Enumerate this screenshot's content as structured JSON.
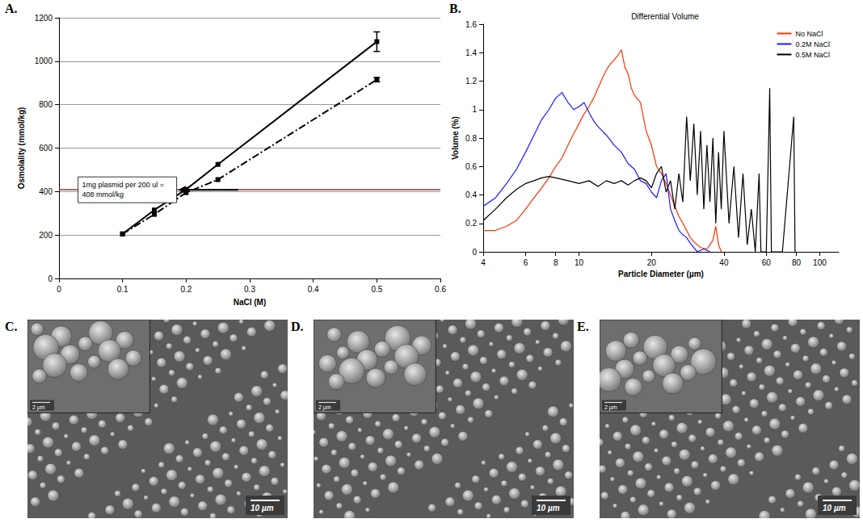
{
  "chart_data": [
    {
      "panel": "A.",
      "type": "line",
      "x_label": "NaCl (M)",
      "y_label": "Osmolality (mmol/kg)",
      "xlim": [
        0,
        0.6
      ],
      "xticks": [
        0,
        0.1,
        0.2,
        0.3,
        0.4,
        0.5,
        0.6
      ],
      "ylim": [
        0,
        1200
      ],
      "yticks": [
        0,
        200,
        400,
        600,
        800,
        1000,
        1200
      ],
      "grid": true,
      "series": [
        {
          "color": "#000000",
          "line_style": "solid",
          "marker": "square",
          "x": [
            0.1,
            0.15,
            0.2,
            0.25,
            0.5
          ],
          "values": [
            205,
            315,
            410,
            525,
            1090
          ],
          "errors": [
            null,
            null,
            null,
            null,
            45
          ]
        },
        {
          "color": "#000000",
          "line_style": "dashdot",
          "marker": "square",
          "x": [
            0.1,
            0.15,
            0.2,
            0.25,
            0.5
          ],
          "values": [
            205,
            295,
            395,
            455,
            915
          ],
          "errors": [
            null,
            null,
            null,
            null,
            10
          ]
        }
      ],
      "annotations": [
        {
          "text": "1mg plasmid per 200 ul = 408 mmol/kg",
          "y": 408,
          "color": "#8b3a2a"
        }
      ]
    },
    {
      "panel": "B.",
      "type": "line",
      "title": "Differential Volume",
      "x_label": "Particle Diameter (µm)",
      "y_label": "Volume (%)",
      "log": "x",
      "xlim": [
        4,
        120
      ],
      "xticks": [
        4,
        6,
        8,
        10,
        20,
        40,
        60,
        80,
        100
      ],
      "ylim": [
        0,
        1.6
      ],
      "yticks": [
        0,
        0.2,
        0.4,
        0.6,
        0.8,
        1,
        1.2,
        1.4,
        1.6
      ],
      "grid": false,
      "legend": "top-right",
      "series": [
        {
          "name": "No NaCl",
          "color": "#ff3300",
          "x": [
            4,
            4.5,
            5,
            5.5,
            6,
            6.5,
            7,
            7.5,
            8,
            8.5,
            9,
            9.5,
            10,
            10.5,
            11,
            11.5,
            12,
            12.5,
            13,
            13.5,
            14,
            14.5,
            15,
            15.5,
            16,
            16.5,
            17,
            18,
            19,
            20,
            21,
            22,
            23,
            24,
            25,
            26,
            27,
            28,
            29,
            30,
            32,
            34,
            36,
            37,
            38,
            39
          ],
          "values": [
            0.15,
            0.15,
            0.18,
            0.22,
            0.3,
            0.38,
            0.45,
            0.52,
            0.6,
            0.66,
            0.75,
            0.83,
            0.9,
            0.97,
            1.02,
            1.08,
            1.15,
            1.22,
            1.28,
            1.32,
            1.35,
            1.38,
            1.42,
            1.3,
            1.25,
            1.15,
            1.1,
            1.05,
            0.85,
            0.75,
            0.6,
            0.55,
            0.48,
            0.4,
            0.32,
            0.25,
            0.2,
            0.15,
            0.1,
            0.07,
            0.03,
            0.02,
            0.08,
            0.18,
            0.05,
            0
          ]
        },
        {
          "name": "0.2M NaCl",
          "color": "#1a1aff",
          "x": [
            4,
            4.5,
            5,
            5.5,
            6,
            6.5,
            7,
            7.5,
            8,
            8.5,
            9,
            9.5,
            10,
            10.5,
            11,
            11.5,
            12,
            13,
            14,
            15,
            16,
            17,
            18,
            19,
            20,
            21,
            22,
            23,
            24,
            25,
            26,
            27,
            28,
            29,
            30,
            31,
            33,
            35
          ],
          "values": [
            0.32,
            0.38,
            0.48,
            0.58,
            0.7,
            0.82,
            0.93,
            1.0,
            1.08,
            1.12,
            1.05,
            1.0,
            1.02,
            1.05,
            0.98,
            0.92,
            0.88,
            0.82,
            0.75,
            0.7,
            0.62,
            0.58,
            0.5,
            0.48,
            0.42,
            0.38,
            0.5,
            0.55,
            0.3,
            0.22,
            0.15,
            0.12,
            0.1,
            0.06,
            0.03,
            0,
            0.02,
            0
          ]
        },
        {
          "name": "0.5M NaCl",
          "color": "#000000",
          "x": [
            4,
            4.5,
            5,
            5.5,
            6,
            6.5,
            7,
            7.5,
            8,
            9,
            10,
            11,
            12,
            13,
            14,
            15,
            16,
            17,
            18,
            19,
            20,
            21,
            22,
            23,
            24,
            25,
            26,
            27,
            28,
            29,
            30,
            31,
            32,
            33,
            34,
            35,
            36,
            37,
            38,
            39,
            40,
            42,
            44,
            46,
            48,
            50,
            52,
            54,
            56,
            57,
            60,
            62,
            63,
            70,
            78,
            79
          ],
          "values": [
            0.22,
            0.3,
            0.38,
            0.44,
            0.48,
            0.5,
            0.52,
            0.53,
            0.52,
            0.5,
            0.48,
            0.5,
            0.46,
            0.5,
            0.48,
            0.5,
            0.47,
            0.5,
            0.52,
            0.5,
            0.45,
            0.55,
            0.6,
            0.42,
            0.5,
            0.3,
            0.55,
            0.35,
            0.95,
            0.5,
            0.9,
            0.4,
            0.85,
            0.3,
            0.75,
            0.35,
            0.8,
            0.2,
            0.7,
            0.3,
            0.85,
            0.2,
            0.6,
            0.1,
            0.55,
            0.05,
            0.3,
            0,
            0.55,
            0,
            0,
            1.15,
            0,
            0,
            0.95,
            0
          ]
        }
      ]
    }
  ],
  "images": [
    {
      "panel": "C.",
      "scale_bar": "10 µm",
      "inset_scale_bar": "2 µm"
    },
    {
      "panel": "D.",
      "scale_bar": "10 µm",
      "inset_scale_bar": "2 µm"
    },
    {
      "panel": "E.",
      "scale_bar": "10 µm",
      "inset_scale_bar": "2 µm"
    }
  ]
}
